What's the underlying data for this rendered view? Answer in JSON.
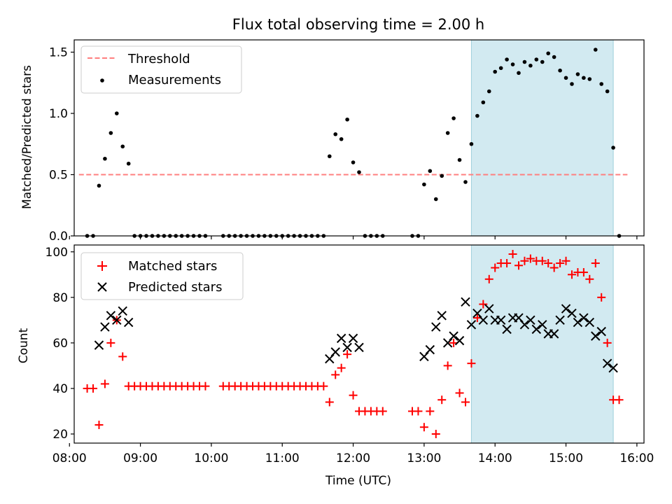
{
  "chart_data": [
    {
      "type": "scatter",
      "title": "Flux total observing time = 2.00 h",
      "xlabel": "",
      "ylabel": "Matched/Predicted stars",
      "ylim": [
        0,
        1.6
      ],
      "yticks": [
        "0.0",
        "0.5",
        "1.0",
        "1.5"
      ],
      "grid": false,
      "legend_position": "upper-left",
      "highlight_span": {
        "start": "13:40",
        "end": "15:40",
        "color": "#add8e6"
      },
      "threshold": {
        "name": "Threshold",
        "value": 0.5,
        "x_start": "08:08",
        "x_end": "15:52",
        "color": "#ff7f7f"
      },
      "series": [
        {
          "name": "Threshold",
          "style": "dashed-line",
          "color": "#ff7f7f"
        },
        {
          "name": "Measurements",
          "color": "#000000",
          "points": [
            [
              "08:15",
              0
            ],
            [
              "08:20",
              0
            ],
            [
              "08:25",
              0.41
            ],
            [
              "08:30",
              0.63
            ],
            [
              "08:35",
              0.84
            ],
            [
              "08:40",
              1.0
            ],
            [
              "08:45",
              0.73
            ],
            [
              "08:50",
              0.59
            ],
            [
              "08:55",
              0
            ],
            [
              "09:00",
              0
            ],
            [
              "09:05",
              0
            ],
            [
              "09:10",
              0
            ],
            [
              "09:15",
              0
            ],
            [
              "09:20",
              0
            ],
            [
              "09:25",
              0
            ],
            [
              "09:30",
              0
            ],
            [
              "09:35",
              0
            ],
            [
              "09:40",
              0
            ],
            [
              "09:45",
              0
            ],
            [
              "09:50",
              0
            ],
            [
              "09:55",
              0
            ],
            [
              "10:10",
              0
            ],
            [
              "10:15",
              0
            ],
            [
              "10:20",
              0
            ],
            [
              "10:25",
              0
            ],
            [
              "10:30",
              0
            ],
            [
              "10:35",
              0
            ],
            [
              "10:40",
              0
            ],
            [
              "10:45",
              0
            ],
            [
              "10:50",
              0
            ],
            [
              "10:55",
              0
            ],
            [
              "11:00",
              0
            ],
            [
              "11:05",
              0
            ],
            [
              "11:10",
              0
            ],
            [
              "11:15",
              0
            ],
            [
              "11:20",
              0
            ],
            [
              "11:25",
              0
            ],
            [
              "11:30",
              0
            ],
            [
              "11:35",
              0
            ],
            [
              "11:40",
              0.65
            ],
            [
              "11:45",
              0.83
            ],
            [
              "11:50",
              0.79
            ],
            [
              "11:55",
              0.95
            ],
            [
              "12:00",
              0.6
            ],
            [
              "12:05",
              0.52
            ],
            [
              "12:10",
              0
            ],
            [
              "12:15",
              0
            ],
            [
              "12:20",
              0
            ],
            [
              "12:25",
              0
            ],
            [
              "12:50",
              0
            ],
            [
              "12:55",
              0
            ],
            [
              "13:00",
              0.42
            ],
            [
              "13:05",
              0.53
            ],
            [
              "13:10",
              0.3
            ],
            [
              "13:15",
              0.49
            ],
            [
              "13:20",
              0.84
            ],
            [
              "13:25",
              0.96
            ],
            [
              "13:30",
              0.62
            ],
            [
              "13:35",
              0.44
            ],
            [
              "13:40",
              0.75
            ],
            [
              "13:45",
              0.98
            ],
            [
              "13:50",
              1.09
            ],
            [
              "13:55",
              1.18
            ],
            [
              "14:00",
              1.34
            ],
            [
              "14:05",
              1.37
            ],
            [
              "14:10",
              1.44
            ],
            [
              "14:15",
              1.4
            ],
            [
              "14:20",
              1.33
            ],
            [
              "14:25",
              1.42
            ],
            [
              "14:30",
              1.39
            ],
            [
              "14:35",
              1.44
            ],
            [
              "14:40",
              1.42
            ],
            [
              "14:45",
              1.49
            ],
            [
              "14:50",
              1.46
            ],
            [
              "14:55",
              1.35
            ],
            [
              "15:00",
              1.29
            ],
            [
              "15:05",
              1.24
            ],
            [
              "15:10",
              1.32
            ],
            [
              "15:15",
              1.29
            ],
            [
              "15:20",
              1.28
            ],
            [
              "15:25",
              1.52
            ],
            [
              "15:30",
              1.24
            ],
            [
              "15:35",
              1.18
            ],
            [
              "15:40",
              0.72
            ],
            [
              "15:45",
              0
            ]
          ]
        }
      ]
    },
    {
      "type": "scatter",
      "xlabel": "Time (UTC)",
      "ylabel": "Count",
      "ylim": [
        16,
        103
      ],
      "xlim": [
        "08:04",
        "16:06"
      ],
      "yticks": [
        "20",
        "40",
        "60",
        "80",
        "100"
      ],
      "xticks": [
        "08:00",
        "09:00",
        "10:00",
        "11:00",
        "12:00",
        "13:00",
        "14:00",
        "15:00",
        "16:00"
      ],
      "grid": false,
      "legend_position": "upper-left",
      "highlight_span": {
        "start": "13:40",
        "end": "15:40",
        "color": "#add8e6"
      },
      "series": [
        {
          "name": "Matched stars",
          "marker": "+",
          "color": "#ff0000",
          "points": [
            [
              "08:15",
              40
            ],
            [
              "08:20",
              40
            ],
            [
              "08:25",
              24
            ],
            [
              "08:30",
              42
            ],
            [
              "08:35",
              60
            ],
            [
              "08:40",
              70
            ],
            [
              "08:45",
              54
            ],
            [
              "08:50",
              41
            ],
            [
              "08:55",
              41
            ],
            [
              "09:00",
              41
            ],
            [
              "09:05",
              41
            ],
            [
              "09:10",
              41
            ],
            [
              "09:15",
              41
            ],
            [
              "09:20",
              41
            ],
            [
              "09:25",
              41
            ],
            [
              "09:30",
              41
            ],
            [
              "09:35",
              41
            ],
            [
              "09:40",
              41
            ],
            [
              "09:45",
              41
            ],
            [
              "09:50",
              41
            ],
            [
              "09:55",
              41
            ],
            [
              "10:10",
              41
            ],
            [
              "10:15",
              41
            ],
            [
              "10:20",
              41
            ],
            [
              "10:25",
              41
            ],
            [
              "10:30",
              41
            ],
            [
              "10:35",
              41
            ],
            [
              "10:40",
              41
            ],
            [
              "10:45",
              41
            ],
            [
              "10:50",
              41
            ],
            [
              "10:55",
              41
            ],
            [
              "11:00",
              41
            ],
            [
              "11:05",
              41
            ],
            [
              "11:10",
              41
            ],
            [
              "11:15",
              41
            ],
            [
              "11:20",
              41
            ],
            [
              "11:25",
              41
            ],
            [
              "11:30",
              41
            ],
            [
              "11:35",
              41
            ],
            [
              "11:40",
              34
            ],
            [
              "11:45",
              46
            ],
            [
              "11:50",
              49
            ],
            [
              "11:55",
              55
            ],
            [
              "12:00",
              37
            ],
            [
              "12:05",
              30
            ],
            [
              "12:10",
              30
            ],
            [
              "12:15",
              30
            ],
            [
              "12:20",
              30
            ],
            [
              "12:25",
              30
            ],
            [
              "12:50",
              30
            ],
            [
              "12:55",
              30
            ],
            [
              "13:00",
              23
            ],
            [
              "13:05",
              30
            ],
            [
              "13:10",
              20
            ],
            [
              "13:15",
              35
            ],
            [
              "13:20",
              50
            ],
            [
              "13:25",
              60
            ],
            [
              "13:30",
              38
            ],
            [
              "13:35",
              34
            ],
            [
              "13:40",
              51
            ],
            [
              "13:45",
              71
            ],
            [
              "13:50",
              77
            ],
            [
              "13:55",
              88
            ],
            [
              "14:00",
              93
            ],
            [
              "14:05",
              95
            ],
            [
              "14:10",
              95
            ],
            [
              "14:15",
              99
            ],
            [
              "14:20",
              94
            ],
            [
              "14:25",
              96
            ],
            [
              "14:30",
              97
            ],
            [
              "14:35",
              96
            ],
            [
              "14:40",
              96
            ],
            [
              "14:45",
              95
            ],
            [
              "14:50",
              93
            ],
            [
              "14:55",
              95
            ],
            [
              "15:00",
              96
            ],
            [
              "15:05",
              90
            ],
            [
              "15:10",
              91
            ],
            [
              "15:15",
              91
            ],
            [
              "15:20",
              88
            ],
            [
              "15:25",
              95
            ],
            [
              "15:30",
              80
            ],
            [
              "15:35",
              60
            ],
            [
              "15:40",
              35
            ],
            [
              "15:45",
              35
            ]
          ]
        },
        {
          "name": "Predicted stars",
          "marker": "x",
          "color": "#000000",
          "points": [
            [
              "08:25",
              59
            ],
            [
              "08:30",
              67
            ],
            [
              "08:35",
              72
            ],
            [
              "08:40",
              70
            ],
            [
              "08:45",
              74
            ],
            [
              "08:50",
              69
            ],
            [
              "11:40",
              53
            ],
            [
              "11:45",
              56
            ],
            [
              "11:50",
              62
            ],
            [
              "11:55",
              58
            ],
            [
              "12:00",
              62
            ],
            [
              "12:05",
              58
            ],
            [
              "13:00",
              54
            ],
            [
              "13:05",
              57
            ],
            [
              "13:10",
              67
            ],
            [
              "13:15",
              72
            ],
            [
              "13:20",
              60
            ],
            [
              "13:25",
              63
            ],
            [
              "13:30",
              61
            ],
            [
              "13:35",
              78
            ],
            [
              "13:40",
              68
            ],
            [
              "13:45",
              73
            ],
            [
              "13:50",
              70
            ],
            [
              "13:55",
              75
            ],
            [
              "14:00",
              70
            ],
            [
              "14:05",
              70
            ],
            [
              "14:10",
              66
            ],
            [
              "14:15",
              71
            ],
            [
              "14:20",
              71
            ],
            [
              "14:25",
              68
            ],
            [
              "14:30",
              70
            ],
            [
              "14:35",
              66
            ],
            [
              "14:40",
              68
            ],
            [
              "14:45",
              64
            ],
            [
              "14:50",
              64
            ],
            [
              "14:55",
              70
            ],
            [
              "15:00",
              75
            ],
            [
              "15:05",
              73
            ],
            [
              "15:10",
              69
            ],
            [
              "15:15",
              71
            ],
            [
              "15:20",
              69
            ],
            [
              "15:25",
              63
            ],
            [
              "15:30",
              65
            ],
            [
              "15:35",
              51
            ],
            [
              "15:40",
              49
            ]
          ]
        }
      ]
    }
  ]
}
